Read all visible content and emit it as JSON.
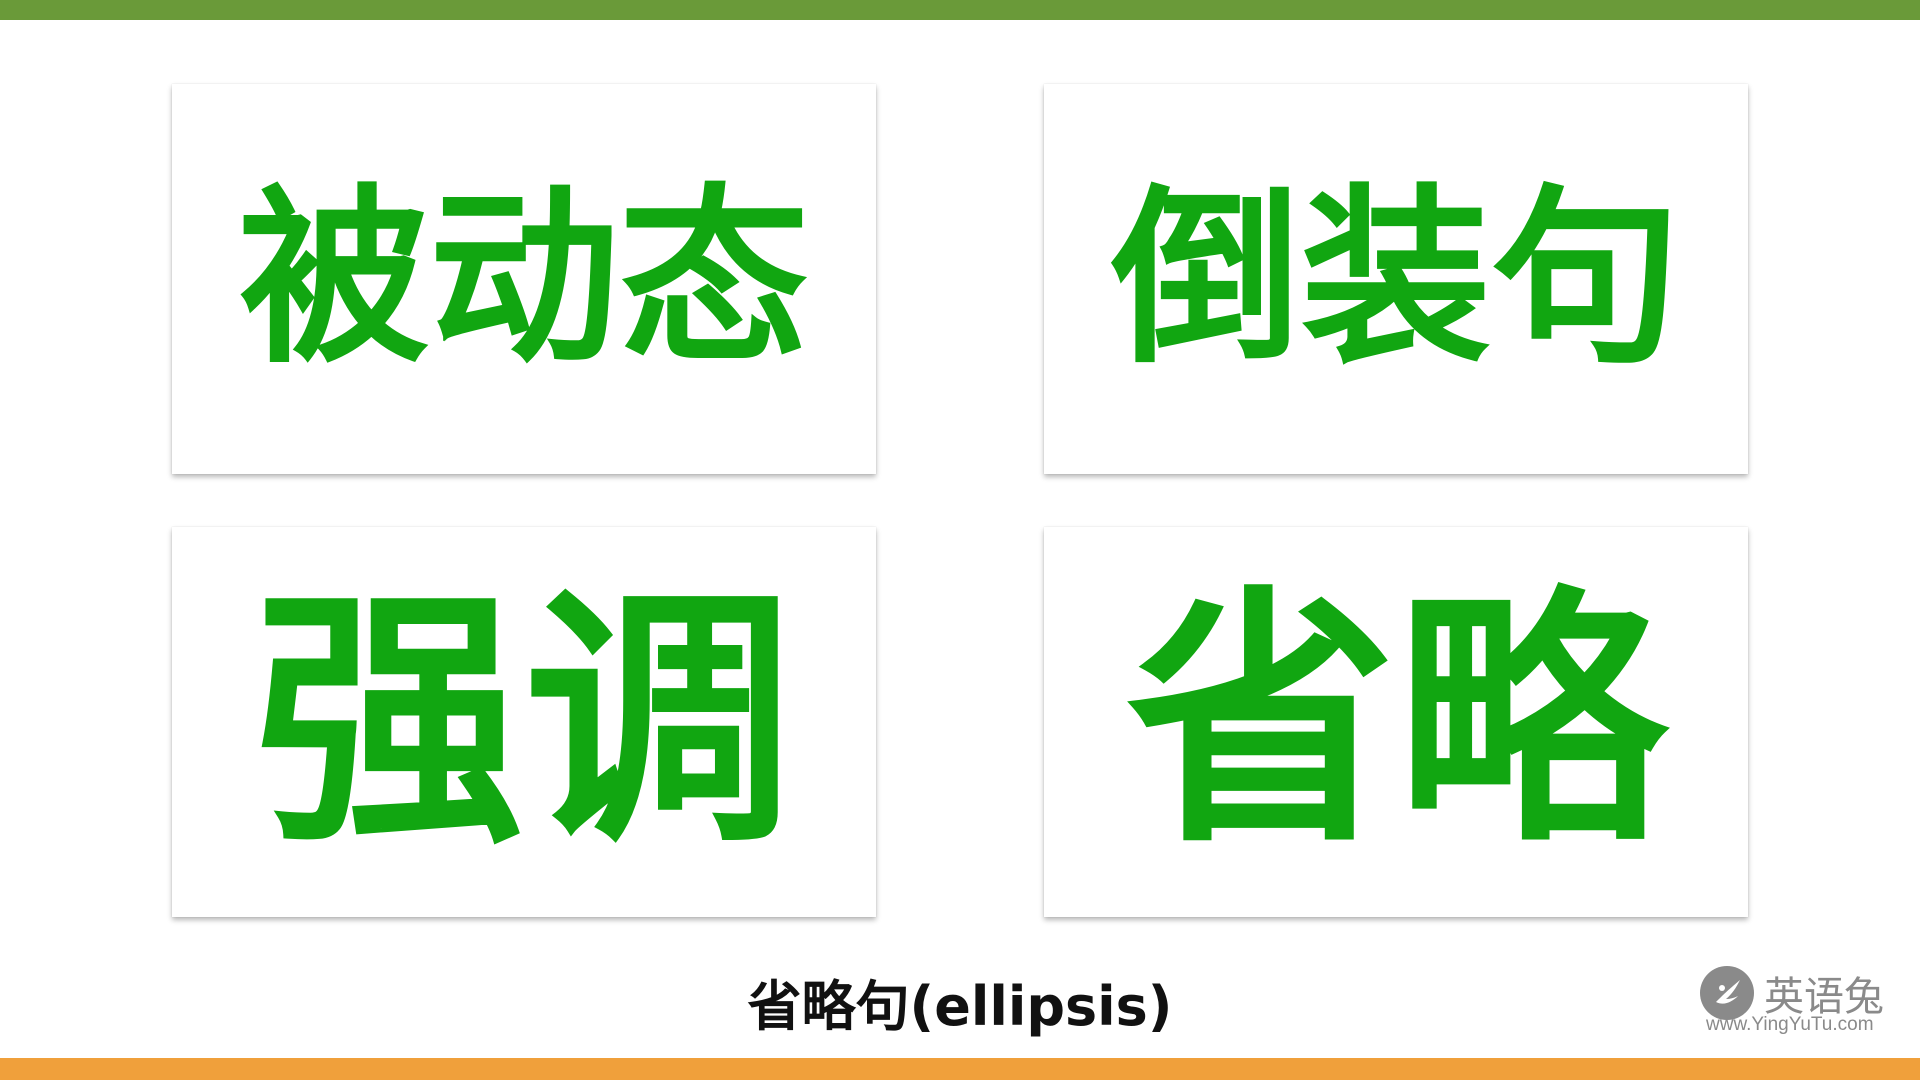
{
  "colors": {
    "top_bar": "#6a9a39",
    "bottom_bar": "#f0a03b",
    "card_text": "#11a611",
    "subtitle_text": "#111111",
    "watermark": "#8a8a8a"
  },
  "cards": [
    {
      "label": "被动态"
    },
    {
      "label": "倒装句"
    },
    {
      "label": "强调"
    },
    {
      "label": "省略"
    }
  ],
  "subtitle": "省略句(ellipsis)",
  "watermark": {
    "icon": "rabbit-logo-icon",
    "name": "英语兔",
    "url": "www.YingYuTu.com"
  }
}
